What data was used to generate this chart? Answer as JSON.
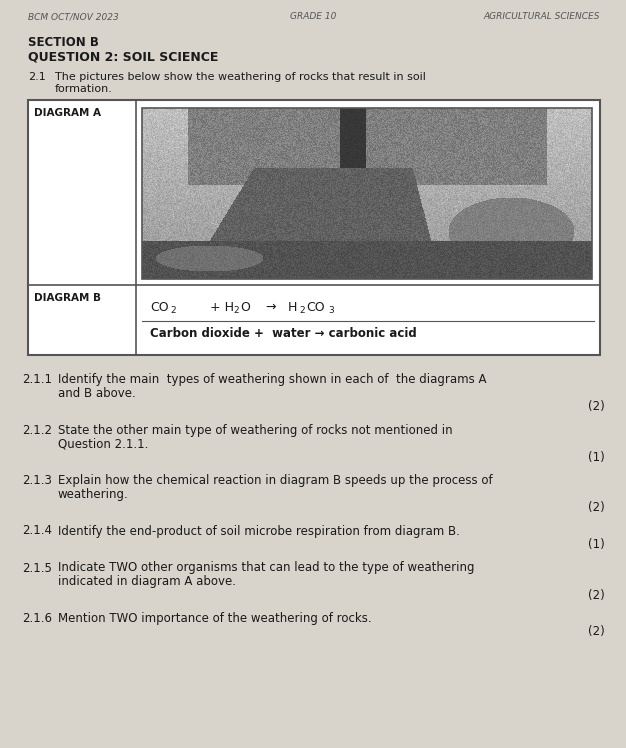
{
  "header_left": "BCM OCT/NOV 2023",
  "header_center": "GRADE 10",
  "header_right": "AGRICULTURAL SCIENCES",
  "section": "SECTION B",
  "question_title": "QUESTION 2: SOIL SCIENCE",
  "intro_number": "2.1",
  "intro_text1": "The pictures below show the weathering of rocks that result in soil",
  "intro_text2": "formation.",
  "diagram_a_label": "DIAGRAM A",
  "diagram_b_label": "DIAGRAM B",
  "questions": [
    {
      "num": "2.1.1",
      "lines": [
        "Identify the main  types of weathering shown in each of  the diagrams A",
        "and B above."
      ],
      "marks": "(2)",
      "marks_after_line": 2
    },
    {
      "num": "2.1.2",
      "lines": [
        "State the other main type of weathering of rocks not mentioned in",
        "Question 2.1.1."
      ],
      "marks": "(1)",
      "marks_after_line": 2
    },
    {
      "num": "2.1.3",
      "lines": [
        "Explain how the chemical reaction in diagram B speeds up the process of",
        "weathering."
      ],
      "marks": "(2)",
      "marks_after_line": 2
    },
    {
      "num": "2.1.4",
      "lines": [
        "Identify the end-product of soil microbe respiration from diagram B."
      ],
      "marks": "(1)",
      "marks_after_line": 1
    },
    {
      "num": "2.1.5",
      "lines": [
        "Indicate TWO other organisms that can lead to the type of weathering",
        "indicated in diagram A above."
      ],
      "marks": "(2)",
      "marks_after_line": 2
    },
    {
      "num": "2.1.6",
      "lines": [
        "Mention TWO importance of the weathering of rocks."
      ],
      "marks": "(2)",
      "marks_after_line": 1
    }
  ],
  "bg_color": "#d8d4cc",
  "text_color": "#1a1a1a",
  "table_bg": "#f0eeea",
  "table_border_color": "#555555",
  "header_text_color": "#555555"
}
